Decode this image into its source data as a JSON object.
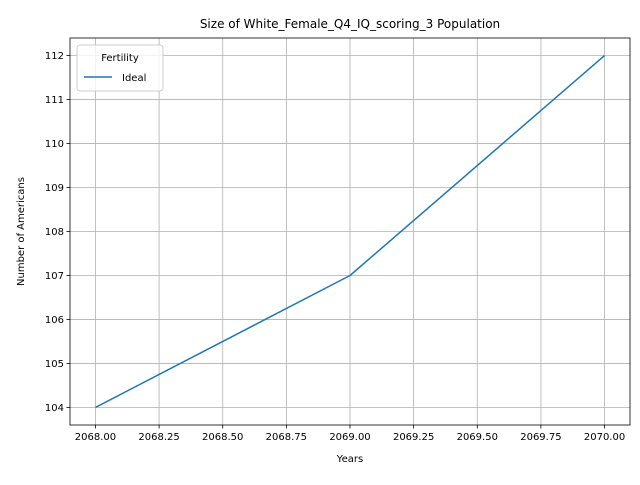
{
  "chart_data": {
    "type": "line",
    "title": "Size of White_Female_Q4_IQ_scoring_3 Population",
    "xlabel": "Years",
    "ylabel": "Number of Americans",
    "x": [
      2068,
      2069,
      2070
    ],
    "series": [
      {
        "name": "Ideal",
        "values": [
          104,
          107,
          112
        ],
        "color": "#1f77b4"
      }
    ],
    "xlim": [
      2067.9,
      2070.1
    ],
    "ylim": [
      103.6,
      112.4
    ],
    "xticks": [
      2068.0,
      2068.25,
      2068.5,
      2068.75,
      2069.0,
      2069.25,
      2069.5,
      2069.75,
      2070.0
    ],
    "xtick_labels": [
      "2068.00",
      "2068.25",
      "2068.50",
      "2068.75",
      "2069.00",
      "2069.25",
      "2069.50",
      "2069.75",
      "2070.00"
    ],
    "yticks": [
      104,
      105,
      106,
      107,
      108,
      109,
      110,
      111,
      112
    ],
    "ytick_labels": [
      "104",
      "105",
      "106",
      "107",
      "108",
      "109",
      "110",
      "111",
      "112"
    ],
    "grid": true,
    "legend": {
      "title": "Fertility",
      "position": "top-left"
    },
    "colors": {
      "grid": "#b0b0b0",
      "axes": "#000000",
      "background": "#ffffff"
    }
  }
}
